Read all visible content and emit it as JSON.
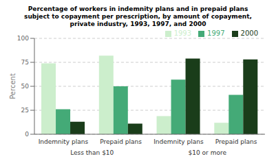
{
  "chart_data": {
    "type": "bar",
    "title": "Percentage of workers in indemnity plans and in prepaid plans\nsubject to copayment per prescription, by amount of copayment,\nprivate industry, 1993, 1997, and 2000",
    "categories": [
      "Indemnity plans",
      "Prepaid plans",
      "Indemnity plans",
      "Prepaid plans"
    ],
    "annotations": [
      "Less than $10",
      "$10 or more"
    ],
    "series": [
      {
        "name": "1993",
        "color": "#cceecc",
        "values": [
          74,
          82,
          19,
          12
        ]
      },
      {
        "name": "1997",
        "color": "#44aa77",
        "values": [
          26,
          50,
          57,
          41
        ]
      },
      {
        "name": "2000",
        "color": "#1a3d1a",
        "values": [
          13,
          11,
          79,
          78
        ]
      }
    ],
    "ylabel": "Percent",
    "ylim": [
      0,
      100
    ],
    "yticks": [
      0,
      25,
      50,
      75,
      100
    ],
    "grid": true,
    "legend": "upper right"
  }
}
